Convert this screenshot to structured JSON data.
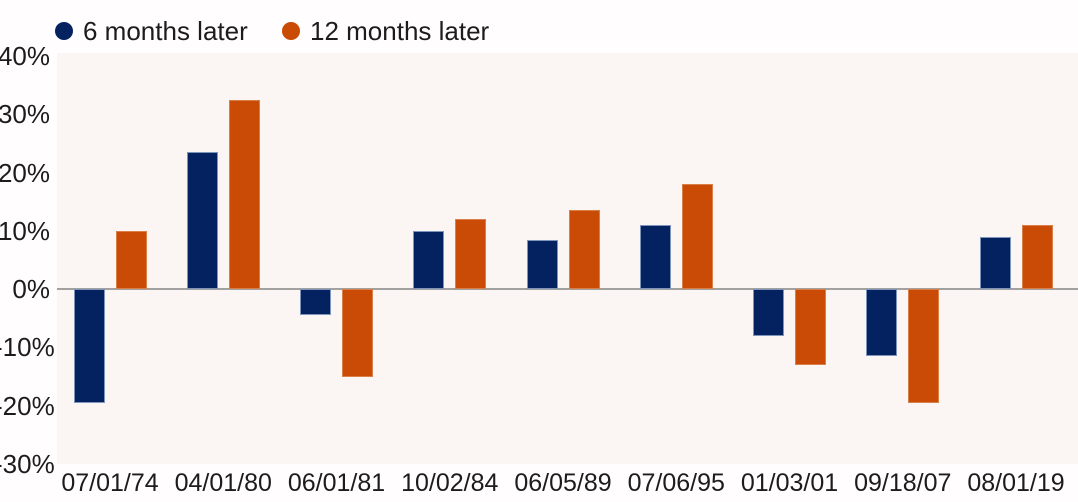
{
  "chart_data": {
    "type": "bar",
    "title": "",
    "xlabel": "",
    "ylabel": "",
    "categories": [
      "07/01/74",
      "04/01/80",
      "06/01/81",
      "10/02/84",
      "06/05/89",
      "07/06/95",
      "01/03/01",
      "09/18/07",
      "08/01/19"
    ],
    "series": [
      {
        "name": "6 months later",
        "color": "#042260",
        "values": [
          -19.5,
          23.5,
          -4.5,
          10,
          8.5,
          11,
          -8,
          -11.5,
          9
        ]
      },
      {
        "name": "12 months later",
        "color": "#ca4b06",
        "values": [
          10,
          32.5,
          -15,
          12,
          13.5,
          18,
          -13,
          -19.5,
          11
        ]
      }
    ],
    "value_unit": "%",
    "ylim": [
      -30,
      40
    ],
    "yticks": [
      40,
      30,
      20,
      10,
      0,
      -10,
      -20,
      -30
    ],
    "ytick_labels": [
      "40%",
      "30%",
      "20%",
      "10%",
      "0%",
      "-10%",
      "-20%",
      "-30%"
    ],
    "grid": false,
    "zero_line": true,
    "legend_position": "top-left"
  },
  "legend": {
    "items": [
      {
        "label": "6 months later",
        "color": "#042260"
      },
      {
        "label": "12 months later",
        "color": "#ca4b06"
      }
    ]
  },
  "colors": {
    "navy": "#042260",
    "orange": "#ca4b06",
    "zero_line": "#a3a0a0",
    "plot_background": "#fbf5f3",
    "page_background": "#fffdfd",
    "text": "#1c1c1c"
  }
}
